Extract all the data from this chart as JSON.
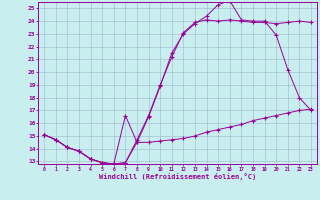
{
  "xlabel": "Windchill (Refroidissement éolien,°C)",
  "bg_color": "#c8eef0",
  "line_color": "#990099",
  "grid_color": "#a0b8cc",
  "xmin": 0,
  "xmax": 23,
  "ymin": 13,
  "ymax": 25,
  "line1_x": [
    0,
    1,
    2,
    3,
    4,
    5,
    6,
    7,
    8,
    9,
    10,
    11,
    12,
    13,
    14,
    15,
    16,
    17,
    18,
    19,
    20,
    21,
    22,
    23
  ],
  "line1_y": [
    15.1,
    14.7,
    14.1,
    13.8,
    13.2,
    12.9,
    12.8,
    12.9,
    14.7,
    16.6,
    19.0,
    21.2,
    23.1,
    23.9,
    24.1,
    24.0,
    24.1,
    24.0,
    23.9,
    23.9,
    23.8,
    23.9,
    24.0,
    23.9
  ],
  "line2_x": [
    0,
    1,
    2,
    3,
    4,
    5,
    6,
    7,
    8,
    9,
    10,
    11,
    12,
    13,
    14,
    15,
    16,
    17,
    18,
    19,
    20,
    21,
    22,
    23
  ],
  "line2_y": [
    15.1,
    14.7,
    14.1,
    13.8,
    13.2,
    12.9,
    12.8,
    12.9,
    14.5,
    16.5,
    18.9,
    21.5,
    23.0,
    23.8,
    24.4,
    25.3,
    25.6,
    24.1,
    24.0,
    24.0,
    22.9,
    20.2,
    18.0,
    17.0
  ],
  "line3_x": [
    0,
    1,
    2,
    3,
    4,
    5,
    6,
    7,
    8,
    9,
    10,
    11,
    12,
    13,
    14,
    15,
    16,
    17,
    18,
    19,
    20,
    21,
    22,
    23
  ],
  "line3_y": [
    15.1,
    14.7,
    14.1,
    13.8,
    13.2,
    12.9,
    12.8,
    16.6,
    14.5,
    14.5,
    14.6,
    14.7,
    14.8,
    15.0,
    15.3,
    15.5,
    15.7,
    15.9,
    16.2,
    16.4,
    16.6,
    16.8,
    17.0,
    17.1
  ]
}
